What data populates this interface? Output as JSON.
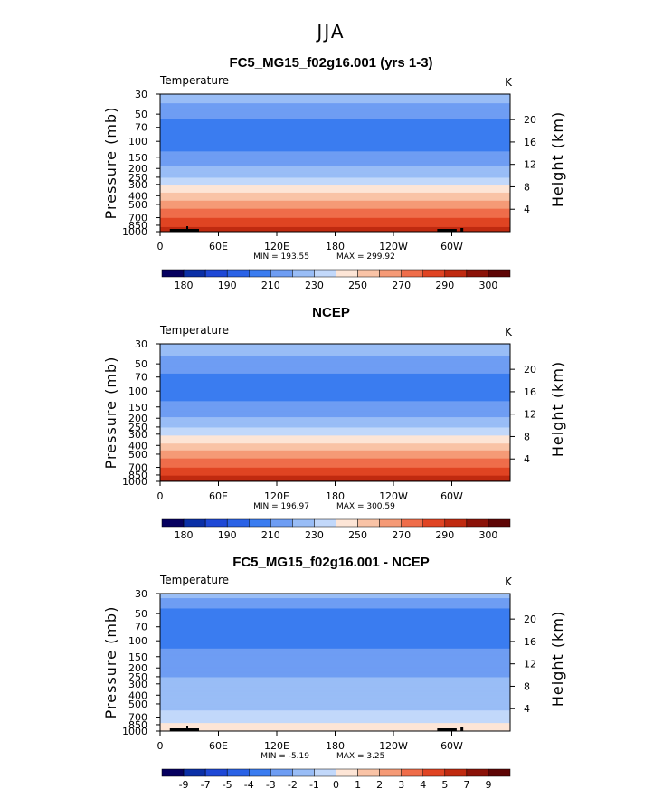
{
  "figure_title": "JJA",
  "chart_data": [
    {
      "type": "heatmap",
      "title": "FC5_MG15_f02g16.001 (yrs 1-3)",
      "left_label": "Temperature",
      "right_label": "K",
      "ylabel": "Pressure (mb)",
      "ylabel_right": "Height (km)",
      "x_ticks": [
        "0",
        "60E",
        "120E",
        "180",
        "120W",
        "60W"
      ],
      "x_values": [
        0,
        60,
        120,
        180,
        240,
        300
      ],
      "xlim": [
        0,
        360
      ],
      "y_ticks": [
        "30",
        "50",
        "70",
        "100",
        "150",
        "200",
        "250",
        "300",
        "400",
        "500",
        "700",
        "850",
        "1000"
      ],
      "y_values": [
        30,
        50,
        70,
        100,
        150,
        200,
        250,
        300,
        400,
        500,
        700,
        850,
        1000
      ],
      "ylim": [
        30,
        1000
      ],
      "height_ticks": [
        "20",
        "16",
        "12",
        "8",
        "4"
      ],
      "height_values": [
        20,
        16,
        12,
        8,
        4
      ],
      "min_label": "MIN = 193.55",
      "max_label": "MAX = 299.92",
      "colorbar_labels": [
        "180",
        "190",
        "210",
        "230",
        "250",
        "270",
        "290",
        "300"
      ],
      "levels": [
        175,
        180,
        185,
        190,
        200,
        210,
        220,
        230,
        240,
        250,
        260,
        270,
        280,
        290,
        295,
        300
      ],
      "profile": {
        "pressure": [
          30,
          40,
          50,
          60,
          70,
          80,
          100,
          125,
          150,
          175,
          200,
          250,
          300,
          350,
          400,
          450,
          500,
          600,
          700,
          800,
          850,
          925,
          1000
        ],
        "temperature": [
          224,
          219,
          214,
          209,
          205,
          203,
          204,
          209,
          214,
          218,
          222,
          230,
          239,
          247,
          254,
          260,
          265,
          273,
          280,
          285,
          288,
          292,
          295
        ]
      }
    },
    {
      "type": "heatmap",
      "title": "NCEP",
      "left_label": "Temperature",
      "right_label": "K",
      "ylabel": "Pressure (mb)",
      "ylabel_right": "Height (km)",
      "x_ticks": [
        "0",
        "60E",
        "120E",
        "180",
        "120W",
        "60W"
      ],
      "x_values": [
        0,
        60,
        120,
        180,
        240,
        300
      ],
      "xlim": [
        0,
        360
      ],
      "y_ticks": [
        "30",
        "50",
        "70",
        "100",
        "150",
        "200",
        "250",
        "300",
        "400",
        "500",
        "700",
        "850",
        "1000"
      ],
      "y_values": [
        30,
        50,
        70,
        100,
        150,
        200,
        250,
        300,
        400,
        500,
        700,
        850,
        1000
      ],
      "ylim": [
        30,
        1000
      ],
      "height_ticks": [
        "20",
        "16",
        "12",
        "8",
        "4"
      ],
      "height_values": [
        20,
        16,
        12,
        8,
        4
      ],
      "min_label": "MIN = 196.97",
      "max_label": "MAX = 300.59",
      "colorbar_labels": [
        "180",
        "190",
        "210",
        "230",
        "250",
        "270",
        "290",
        "300"
      ],
      "levels": [
        175,
        180,
        185,
        190,
        200,
        210,
        220,
        230,
        240,
        250,
        260,
        270,
        280,
        290,
        295,
        300
      ],
      "profile": {
        "pressure": [
          30,
          40,
          50,
          60,
          70,
          80,
          100,
          125,
          150,
          175,
          200,
          250,
          300,
          350,
          400,
          450,
          500,
          600,
          700,
          800,
          850,
          925,
          1000
        ],
        "temperature": [
          225,
          221,
          216,
          212,
          208,
          206,
          205,
          209,
          213,
          217,
          221,
          229,
          238,
          246,
          253,
          259,
          264,
          273,
          280,
          286,
          289,
          293,
          296
        ]
      }
    },
    {
      "type": "heatmap",
      "title": "FC5_MG15_f02g16.001 - NCEP",
      "left_label": "Temperature",
      "right_label": "K",
      "ylabel": "Pressure (mb)",
      "ylabel_right": "Height (km)",
      "x_ticks": [
        "0",
        "60E",
        "120E",
        "180",
        "120W",
        "60W"
      ],
      "x_values": [
        0,
        60,
        120,
        180,
        240,
        300
      ],
      "xlim": [
        0,
        360
      ],
      "y_ticks": [
        "30",
        "50",
        "70",
        "100",
        "150",
        "200",
        "250",
        "300",
        "400",
        "500",
        "700",
        "850",
        "1000"
      ],
      "y_values": [
        30,
        50,
        70,
        100,
        150,
        200,
        250,
        300,
        400,
        500,
        700,
        850,
        1000
      ],
      "ylim": [
        30,
        1000
      ],
      "height_ticks": [
        "20",
        "16",
        "12",
        "8",
        "4"
      ],
      "height_values": [
        20,
        16,
        12,
        8,
        4
      ],
      "min_label": "MIN = -5.19",
      "max_label": "MAX = 3.25",
      "colorbar_labels": [
        "-9",
        "-7",
        "-5",
        "-4",
        "-3",
        "-2",
        "-1",
        "0",
        "1",
        "2",
        "3",
        "4",
        "5",
        "7",
        "9"
      ],
      "levels": [
        -11,
        -9,
        -7,
        -5,
        -4,
        -3,
        -2,
        -1,
        0,
        1,
        2,
        3,
        4,
        5,
        7,
        9
      ],
      "profile": {
        "pressure": [
          30,
          50,
          70,
          100,
          150,
          200,
          250,
          300,
          400,
          500,
          700,
          850,
          1000
        ],
        "temperature": [
          -1.5,
          -3.5,
          -3.0,
          -3.5,
          -2.5,
          -3.0,
          -2.0,
          -1.5,
          -1.3,
          -1.5,
          -0.5,
          0.2,
          0.3
        ]
      }
    }
  ],
  "colorbar_colors": [
    "#06005f",
    "#0a2fa6",
    "#1e48d6",
    "#2a62e6",
    "#3a7cf0",
    "#6e9df3",
    "#99bdf6",
    "#c2d8fa",
    "#fde5d6",
    "#f9c3a6",
    "#f59a76",
    "#ef6d4a",
    "#e04423",
    "#c02a10",
    "#8b1208",
    "#5e0505"
  ]
}
